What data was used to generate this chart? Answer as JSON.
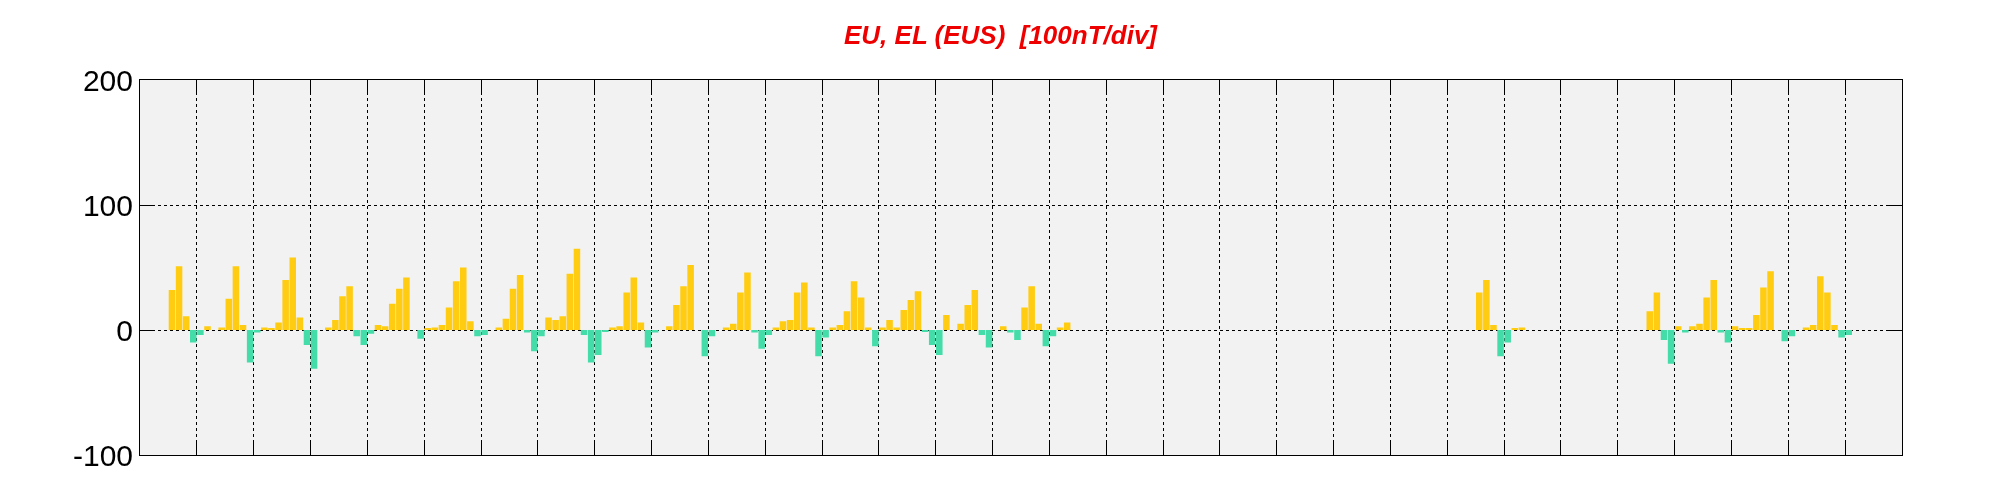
{
  "chart_data": {
    "type": "bar",
    "title": "EU, EL (EUS)  [100nT/div]",
    "categories": [
      null,
      null,
      null,
      null,
      null,
      null,
      null,
      null,
      null,
      null,
      null,
      null,
      null,
      null,
      null,
      null,
      null,
      null,
      null,
      null,
      null,
      null,
      null,
      null,
      null,
      null,
      null,
      null,
      null,
      null,
      null,
      null,
      null,
      null,
      null,
      null,
      null,
      null,
      null,
      null,
      null,
      null,
      null,
      null,
      null,
      null,
      null,
      null,
      null,
      null,
      null,
      null,
      null,
      null,
      null,
      null,
      null,
      null,
      null,
      null,
      null,
      null,
      null,
      null,
      null,
      null,
      null,
      null,
      null,
      null,
      null,
      null,
      null,
      null,
      null,
      null,
      null,
      null,
      null,
      null,
      null,
      null,
      null,
      null,
      null,
      null,
      null,
      null,
      null,
      null,
      null,
      null,
      null,
      null,
      null,
      null,
      null,
      null,
      null,
      null,
      null,
      null,
      null,
      null,
      null,
      null,
      null,
      null,
      null,
      null,
      null,
      null,
      null,
      null,
      null,
      null,
      null,
      null,
      null,
      null,
      null,
      null,
      null,
      null,
      null,
      null,
      null,
      null,
      null,
      null,
      null,
      null,
      null,
      null,
      null,
      null,
      null,
      null,
      null,
      null,
      null,
      null,
      null,
      null,
      null,
      null,
      null,
      null,
      null,
      null,
      null,
      null,
      null,
      null,
      null,
      null,
      null,
      null,
      null,
      null,
      null,
      null,
      null,
      null,
      null,
      null,
      null,
      null,
      null,
      null,
      null,
      null,
      null,
      null,
      null,
      null,
      null,
      null,
      null,
      null,
      null,
      null,
      null,
      null,
      null,
      null,
      null,
      null,
      null,
      null,
      null,
      null,
      null,
      null,
      null,
      null,
      null,
      null,
      null,
      null,
      null,
      null,
      null,
      null,
      null,
      null,
      null,
      null,
      null,
      null,
      null,
      null,
      null,
      null,
      null,
      null,
      null,
      null,
      null,
      null,
      null,
      null,
      null,
      null,
      null,
      null,
      null,
      null,
      null,
      null,
      null,
      null,
      null,
      null,
      null,
      null,
      null,
      null,
      null,
      null,
      null,
      null,
      null,
      null,
      null,
      null,
      null,
      null
    ],
    "series": [
      {
        "color": "#ffcc11",
        "values": [
          null,
          null,
          null,
          null,
          32,
          51,
          11,
          0,
          0,
          3,
          0,
          2,
          25,
          51,
          4,
          0,
          0,
          2,
          1,
          6,
          40,
          58,
          10,
          0,
          0,
          0,
          2,
          8,
          27,
          35,
          0,
          0,
          0,
          4,
          3,
          21,
          33,
          42,
          0,
          0,
          1,
          2,
          4,
          18,
          39,
          50,
          7,
          0,
          0,
          0,
          2,
          9,
          33,
          44,
          0,
          0,
          0,
          10,
          8,
          11,
          45,
          65,
          0,
          0,
          0,
          0,
          2,
          3,
          30,
          42,
          6,
          0,
          0,
          0,
          3,
          20,
          35,
          52,
          0,
          0,
          0,
          0,
          2,
          5,
          30,
          46,
          0,
          0,
          0,
          2,
          7,
          8,
          30,
          38,
          2,
          0,
          0,
          2,
          4,
          15,
          39,
          26,
          2,
          0,
          2,
          8,
          2,
          16,
          24,
          31,
          0,
          0,
          0,
          12,
          0,
          5,
          20,
          32,
          0,
          0,
          0,
          3,
          0,
          0,
          18,
          35,
          5,
          0,
          0,
          2,
          6,
          null,
          null,
          null,
          null,
          null,
          null,
          null,
          null,
          null,
          null,
          null,
          null,
          null,
          null,
          null,
          null,
          null,
          null,
          null,
          null,
          null,
          null,
          null,
          null,
          null,
          null,
          null,
          null,
          null,
          null,
          null,
          null,
          null,
          null,
          null,
          null,
          null,
          null,
          null,
          null,
          null,
          null,
          null,
          null,
          null,
          null,
          null,
          null,
          null,
          null,
          null,
          null,
          null,
          null,
          null,
          null,
          null,
          30,
          40,
          4,
          0,
          0,
          1,
          2,
          null,
          null,
          null,
          null,
          null,
          null,
          null,
          null,
          null,
          null,
          null,
          null,
          null,
          null,
          null,
          null,
          null,
          15,
          30,
          0,
          0,
          3,
          0,
          3,
          5,
          26,
          40,
          0,
          0,
          3,
          1,
          1,
          12,
          34,
          47,
          0,
          0,
          0,
          0,
          2,
          4,
          43,
          30,
          4,
          0,
          0,
          null,
          null,
          null,
          null,
          null,
          null,
          null
        ]
      },
      {
        "color": "#44ddaa",
        "values": [
          null,
          null,
          null,
          null,
          0,
          0,
          0,
          -10,
          -4,
          0,
          0,
          0,
          0,
          0,
          0,
          -26,
          -2,
          0,
          0,
          0,
          0,
          0,
          0,
          -12,
          -31,
          0,
          0,
          0,
          0,
          0,
          -5,
          -12,
          -3,
          0,
          0,
          0,
          0,
          0,
          0,
          -7,
          0,
          0,
          0,
          0,
          0,
          0,
          0,
          -5,
          -4,
          0,
          0,
          0,
          0,
          0,
          -2,
          -17,
          -5,
          0,
          0,
          0,
          0,
          0,
          -4,
          -26,
          -20,
          -1,
          0,
          0,
          0,
          0,
          0,
          -14,
          -2,
          0,
          0,
          0,
          0,
          0,
          0,
          -21,
          -5,
          0,
          0,
          0,
          0,
          0,
          -2,
          -15,
          -4,
          0,
          0,
          0,
          0,
          0,
          0,
          -21,
          -6,
          0,
          0,
          0,
          0,
          0,
          0,
          -13,
          0,
          0,
          0,
          0,
          0,
          0,
          -1,
          -12,
          -20,
          0,
          0,
          0,
          0,
          0,
          -4,
          -14,
          0,
          0,
          -2,
          -8,
          0,
          0,
          0,
          -13,
          -5,
          0,
          0,
          null,
          null,
          null,
          null,
          null,
          null,
          null,
          null,
          null,
          null,
          null,
          null,
          null,
          null,
          null,
          null,
          null,
          null,
          null,
          null,
          null,
          null,
          null,
          null,
          null,
          null,
          null,
          null,
          null,
          null,
          null,
          null,
          null,
          null,
          null,
          null,
          null,
          null,
          null,
          null,
          null,
          null,
          null,
          null,
          null,
          null,
          null,
          null,
          null,
          null,
          null,
          null,
          null,
          null,
          null,
          null,
          null,
          0,
          0,
          0,
          -21,
          -10,
          0,
          0,
          null,
          null,
          null,
          null,
          null,
          null,
          null,
          null,
          null,
          null,
          null,
          null,
          null,
          null,
          null,
          null,
          null,
          0,
          0,
          -8,
          -27,
          0,
          -2,
          0,
          0,
          0,
          0,
          -2,
          -10,
          0,
          0,
          0,
          0,
          0,
          0,
          0,
          -9,
          -5,
          0,
          0,
          0,
          0,
          0,
          0,
          -6,
          -4,
          null,
          null,
          null,
          null,
          null,
          null,
          null
        ]
      }
    ],
    "ylim": [
      -100,
      200
    ],
    "yticks": [
      -100,
      0,
      100,
      200
    ],
    "grid": true,
    "tick_labels": "y"
  }
}
